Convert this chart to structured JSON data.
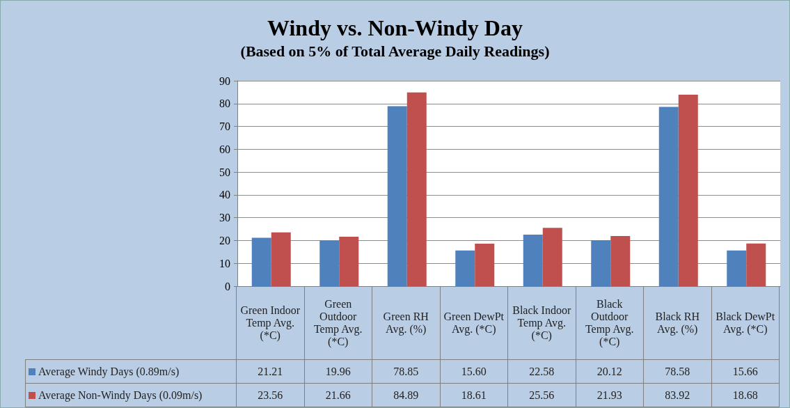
{
  "chart_data": {
    "type": "bar",
    "title": "Windy vs. Non-Windy Day",
    "subtitle": "(Based on 5% of Total Average Daily Readings)",
    "categories": [
      "Green Indoor Temp Avg. (*C)",
      "Green Outdoor Temp Avg. (*C)",
      "Green RH Avg. (%)",
      "Green DewPt Avg.  (*C)",
      "Black Indoor Temp Avg. (*C)",
      "Black Outdoor Temp Avg. (*C)",
      "Black RH Avg. (%)",
      "Black DewPt Avg.  (*C)"
    ],
    "series": [
      {
        "name": "Average Windy Days (0.89m/s)",
        "color": "#4f81bd",
        "values": [
          21.21,
          19.96,
          78.85,
          15.6,
          22.58,
          20.12,
          78.58,
          15.66
        ],
        "value_labels": [
          "21.21",
          "19.96",
          "78.85",
          "15.60",
          "22.58",
          "20.12",
          "78.58",
          "15.66"
        ]
      },
      {
        "name": "Average Non-Windy Days (0.09m/s)",
        "color": "#c0504d",
        "values": [
          23.56,
          21.66,
          84.89,
          18.61,
          25.56,
          21.93,
          83.92,
          18.68
        ],
        "value_labels": [
          "23.56",
          "21.66",
          "84.89",
          "18.61",
          "25.56",
          "21.93",
          "83.92",
          "18.68"
        ]
      }
    ],
    "ylim": [
      0,
      90
    ],
    "yticks": [
      0,
      10,
      20,
      30,
      40,
      50,
      60,
      70,
      80,
      90
    ],
    "grid": "y",
    "legend": "bottom"
  }
}
